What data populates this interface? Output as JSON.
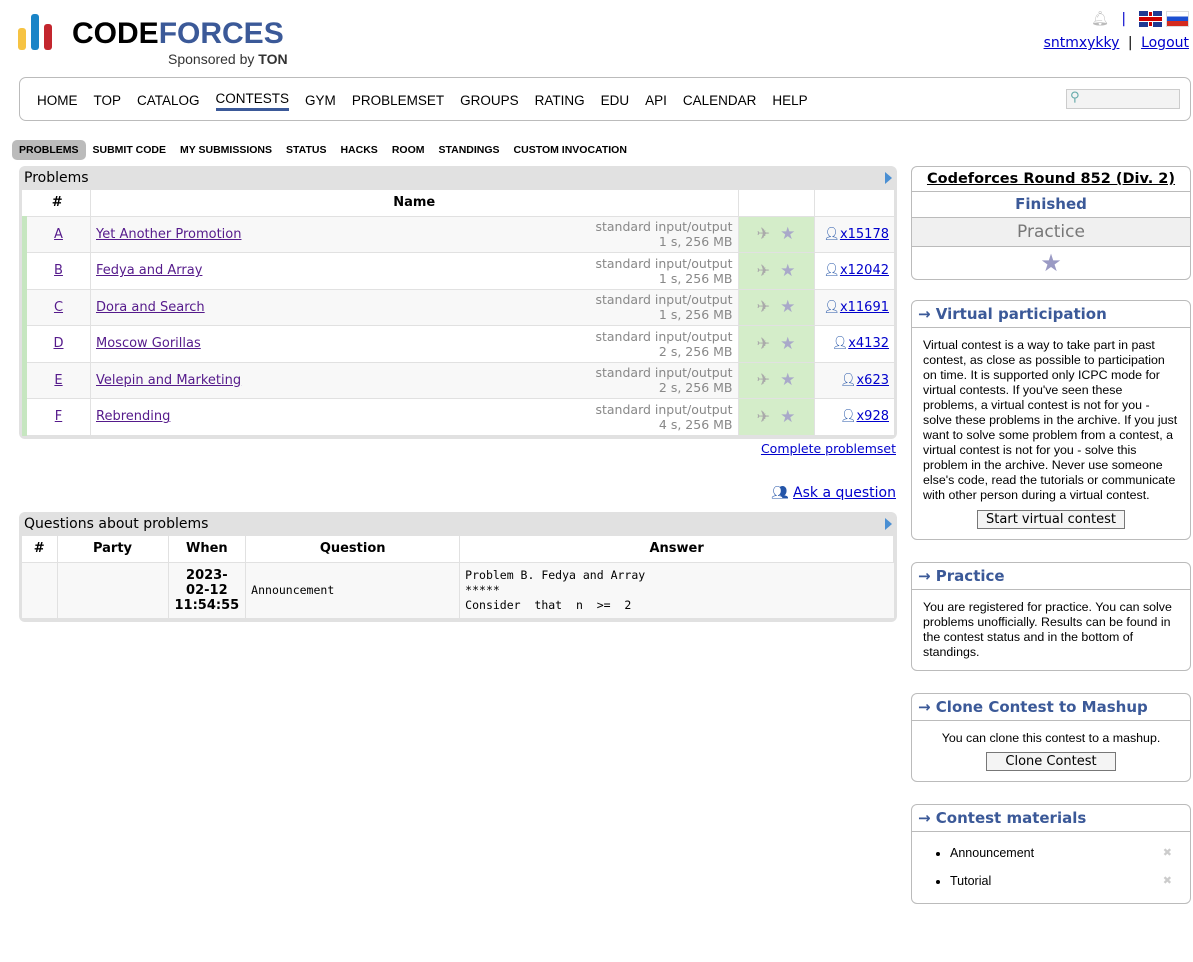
{
  "header": {
    "logo_code": "CODE",
    "logo_forces": "FORCES",
    "sponsor": "Sponsored by ",
    "sponsor_brand": "TON",
    "username": "sntmxykky",
    "logout": "Logout",
    "separator": "|"
  },
  "menu": [
    "HOME",
    "TOP",
    "CATALOG",
    "CONTESTS",
    "GYM",
    "PROBLEMSET",
    "GROUPS",
    "RATING",
    "EDU",
    "API",
    "CALENDAR",
    "HELP"
  ],
  "menu_active": "CONTESTS",
  "subnav": [
    "PROBLEMS",
    "SUBMIT CODE",
    "MY SUBMISSIONS",
    "STATUS",
    "HACKS",
    "ROOM",
    "STANDINGS",
    "CUSTOM INVOCATION"
  ],
  "problems": {
    "title": "Problems",
    "headers": {
      "num": "#",
      "name": "Name"
    },
    "rows": [
      {
        "id": "A",
        "name": "Yet Another Promotion",
        "io": "standard input/output",
        "limits": "1 s, 256 MB",
        "solved": "x15178"
      },
      {
        "id": "B",
        "name": "Fedya and Array",
        "io": "standard input/output",
        "limits": "1 s, 256 MB",
        "solved": "x12042"
      },
      {
        "id": "C",
        "name": "Dora and Search",
        "io": "standard input/output",
        "limits": "1 s, 256 MB",
        "solved": "x11691"
      },
      {
        "id": "D",
        "name": "Moscow Gorillas",
        "io": "standard input/output",
        "limits": "2 s, 256 MB",
        "solved": "x4132"
      },
      {
        "id": "E",
        "name": "Velepin and Marketing",
        "io": "standard input/output",
        "limits": "2 s, 256 MB",
        "solved": "x623"
      },
      {
        "id": "F",
        "name": "Rebrending",
        "io": "standard input/output",
        "limits": "4 s, 256 MB",
        "solved": "x928"
      }
    ],
    "complete": "Complete problemset"
  },
  "ask": "Ask a question",
  "questions": {
    "title": "Questions about problems",
    "headers": [
      "#",
      "Party",
      "When",
      "Question",
      "Answer"
    ],
    "rows": [
      {
        "num": "",
        "party": "",
        "when": "2023-02-12 11:54:55",
        "question": "Announcement",
        "answer_lines": [
          "Problem B. Fedya and Array",
          "*****",
          "Consider  that  n  >=  2"
        ]
      }
    ]
  },
  "sidebar": {
    "contest": {
      "name": "Codeforces Round 852 (Div. 2)",
      "phase": "Finished",
      "mode": "Practice"
    },
    "virtual": {
      "title": "→ Virtual participation",
      "text": "Virtual contest is a way to take part in past contest, as close as possible to participation on time. It is supported only ICPC mode for virtual contests. If you've seen these problems, a virtual contest is not for you - solve these problems in the archive. If you just want to solve some problem from a contest, a virtual contest is not for you - solve this problem in the archive. Never use someone else's code, read the tutorials or communicate with other person during a virtual contest.",
      "button": "Start virtual contest"
    },
    "practice": {
      "title": "→ Practice",
      "text": "You are registered for practice. You can solve problems unofficially. Results can be found in the contest status and in the bottom of standings."
    },
    "clone": {
      "title": "→ Clone Contest to Mashup",
      "text": "You can clone this contest to a mashup.",
      "button": "Clone Contest"
    },
    "materials": {
      "title": "→ Contest materials",
      "items": [
        "Announcement",
        "Tutorial"
      ]
    }
  },
  "colors": {
    "accent": "#3b5998",
    "solved_green": "#d4edc9",
    "link": "#0000cc",
    "visited": "#551a8b"
  }
}
